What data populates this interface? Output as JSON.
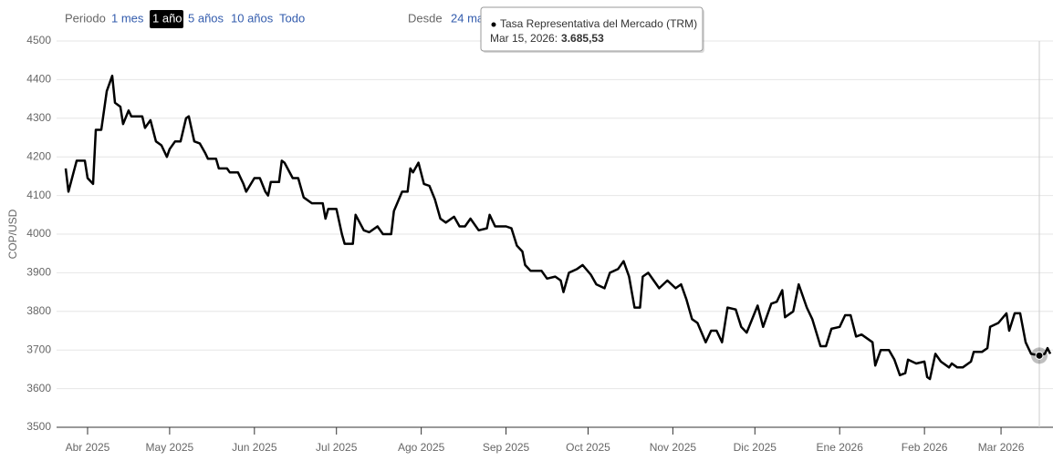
{
  "controls": {
    "period_label": "Periodo",
    "periods": [
      "1 mes",
      "1 año",
      "5 años",
      "10 años",
      "Todo"
    ],
    "selected": 1,
    "from_label": "Desde",
    "from_value": "24 ma"
  },
  "chart_data": {
    "type": "line",
    "y_label": "COP/USD",
    "xlim": [
      "2025-03-24",
      "2026-03-20"
    ],
    "ylim": [
      3500,
      4500
    ],
    "yticks": [
      3500,
      3600,
      3700,
      3800,
      3900,
      4000,
      4100,
      4200,
      4300,
      4400,
      4500
    ],
    "xticks": [
      {
        "value": "2025-04-01",
        "label": "Abr 2025"
      },
      {
        "value": "2025-05-01",
        "label": "May 2025"
      },
      {
        "value": "2025-06-01",
        "label": "Jun 2025"
      },
      {
        "value": "2025-07-01",
        "label": "Jul 2025"
      },
      {
        "value": "2025-08-01",
        "label": "Ago 2025"
      },
      {
        "value": "2025-09-01",
        "label": "Sep 2025"
      },
      {
        "value": "2025-10-01",
        "label": "Oct 2025"
      },
      {
        "value": "2025-11-01",
        "label": "Nov 2025"
      },
      {
        "value": "2025-12-01",
        "label": "Dic 2025"
      },
      {
        "value": "2026-01-01",
        "label": "Ene 2026"
      },
      {
        "value": "2026-02-01",
        "label": "Feb 2026"
      },
      {
        "value": "2026-03-01",
        "label": "Mar 2026"
      }
    ],
    "grid": true,
    "x": [
      "2025-03-24",
      "2025-03-25",
      "2025-03-28",
      "2025-03-31",
      "2025-04-01",
      "2025-04-03",
      "2025-04-04",
      "2025-04-06",
      "2025-04-08",
      "2025-04-10",
      "2025-04-11",
      "2025-04-13",
      "2025-04-14",
      "2025-04-16",
      "2025-04-17",
      "2025-04-21",
      "2025-04-22",
      "2025-04-24",
      "2025-04-26",
      "2025-04-28",
      "2025-04-30",
      "2025-05-01",
      "2025-05-03",
      "2025-05-05",
      "2025-05-07",
      "2025-05-08",
      "2025-05-10",
      "2025-05-12",
      "2025-05-14",
      "2025-05-15",
      "2025-05-18",
      "2025-05-19",
      "2025-05-22",
      "2025-05-23",
      "2025-05-26",
      "2025-05-28",
      "2025-05-29",
      "2025-06-01",
      "2025-06-03",
      "2025-06-05",
      "2025-06-06",
      "2025-06-07",
      "2025-06-10",
      "2025-06-11",
      "2025-06-12",
      "2025-06-15",
      "2025-06-17",
      "2025-06-19",
      "2025-06-22",
      "2025-06-26",
      "2025-06-27",
      "2025-06-28",
      "2025-07-01",
      "2025-07-03",
      "2025-07-04",
      "2025-07-07",
      "2025-07-08",
      "2025-07-11",
      "2025-07-13",
      "2025-07-16",
      "2025-07-18",
      "2025-07-21",
      "2025-07-22",
      "2025-07-25",
      "2025-07-27",
      "2025-07-28",
      "2025-07-29",
      "2025-07-31",
      "2025-08-02",
      "2025-08-04",
      "2025-08-06",
      "2025-08-08",
      "2025-08-10",
      "2025-08-13",
      "2025-08-15",
      "2025-08-17",
      "2025-08-19",
      "2025-08-22",
      "2025-08-25",
      "2025-08-26",
      "2025-08-28",
      "2025-09-01",
      "2025-09-03",
      "2025-09-05",
      "2025-09-07",
      "2025-09-08",
      "2025-09-10",
      "2025-09-14",
      "2025-09-16",
      "2025-09-19",
      "2025-09-21",
      "2025-09-22",
      "2025-09-24",
      "2025-09-27",
      "2025-09-29",
      "2025-10-02",
      "2025-10-04",
      "2025-10-07",
      "2025-10-09",
      "2025-10-12",
      "2025-10-14",
      "2025-10-16",
      "2025-10-18",
      "2025-10-20",
      "2025-10-21",
      "2025-10-23",
      "2025-10-25",
      "2025-10-27",
      "2025-10-30",
      "2025-11-02",
      "2025-11-04",
      "2025-11-06",
      "2025-11-08",
      "2025-11-10",
      "2025-11-13",
      "2025-11-15",
      "2025-11-17",
      "2025-11-19",
      "2025-11-21",
      "2025-11-24",
      "2025-11-26",
      "2025-11-28",
      "2025-12-02",
      "2025-12-04",
      "2025-12-07",
      "2025-12-09",
      "2025-12-11",
      "2025-12-12",
      "2025-12-15",
      "2025-12-17",
      "2025-12-20",
      "2025-12-22",
      "2025-12-25",
      "2025-12-27",
      "2025-12-29",
      "2026-01-01",
      "2026-01-03",
      "2026-01-05",
      "2026-01-07",
      "2026-01-09",
      "2026-01-13",
      "2026-01-14",
      "2026-01-16",
      "2026-01-19",
      "2026-01-21",
      "2026-01-23",
      "2026-01-25",
      "2026-01-26",
      "2026-01-29",
      "2026-02-01",
      "2026-02-02",
      "2026-02-03",
      "2026-02-05",
      "2026-02-07",
      "2026-02-10",
      "2026-02-11",
      "2026-02-13",
      "2026-02-15",
      "2026-02-18",
      "2026-02-19",
      "2026-02-22",
      "2026-02-24",
      "2026-02-25",
      "2026-02-28",
      "2026-03-03",
      "2026-03-04",
      "2026-03-06",
      "2026-03-08",
      "2026-03-10",
      "2026-03-12",
      "2026-03-15",
      "2026-03-17",
      "2026-03-18",
      "2026-03-19"
    ],
    "series": [
      {
        "name": "Tasa Representativa del Mercado (TRM)",
        "color": "#000000",
        "values": [
          4170,
          4110,
          4190,
          4190,
          4145,
          4130,
          4270,
          4270,
          4370,
          4410,
          4340,
          4330,
          4285,
          4320,
          4305,
          4305,
          4275,
          4295,
          4240,
          4230,
          4200,
          4220,
          4240,
          4240,
          4300,
          4305,
          4240,
          4235,
          4210,
          4195,
          4195,
          4170,
          4170,
          4160,
          4160,
          4130,
          4110,
          4145,
          4145,
          4110,
          4100,
          4135,
          4135,
          4190,
          4185,
          4145,
          4145,
          4095,
          4080,
          4080,
          4040,
          4065,
          4065,
          4000,
          3975,
          3975,
          4050,
          4010,
          4005,
          4020,
          4000,
          4000,
          4060,
          4110,
          4110,
          4170,
          4160,
          4185,
          4130,
          4125,
          4090,
          4040,
          4030,
          4045,
          4020,
          4020,
          4040,
          4010,
          4015,
          4050,
          4020,
          4020,
          4015,
          3970,
          3955,
          3920,
          3905,
          3905,
          3885,
          3890,
          3880,
          3850,
          3900,
          3910,
          3920,
          3895,
          3870,
          3860,
          3900,
          3910,
          3930,
          3890,
          3810,
          3810,
          3890,
          3900,
          3880,
          3860,
          3880,
          3860,
          3870,
          3830,
          3780,
          3770,
          3720,
          3750,
          3750,
          3720,
          3810,
          3805,
          3760,
          3745,
          3815,
          3760,
          3820,
          3825,
          3855,
          3785,
          3800,
          3870,
          3810,
          3780,
          3710,
          3710,
          3755,
          3760,
          3790,
          3790,
          3735,
          3740,
          3720,
          3660,
          3700,
          3700,
          3675,
          3635,
          3640,
          3675,
          3665,
          3670,
          3630,
          3625,
          3690,
          3670,
          3655,
          3665,
          3655,
          3655,
          3670,
          3695,
          3695,
          3705,
          3760,
          3770,
          3795,
          3750,
          3795,
          3795,
          3720,
          3690,
          3685.53,
          3690,
          3705,
          3690
        ]
      }
    ],
    "tooltip": {
      "x": "2026-03-15",
      "value": 3685.53,
      "date_label": "Mar 15, 2026:",
      "value_label": "3.685,53"
    }
  }
}
